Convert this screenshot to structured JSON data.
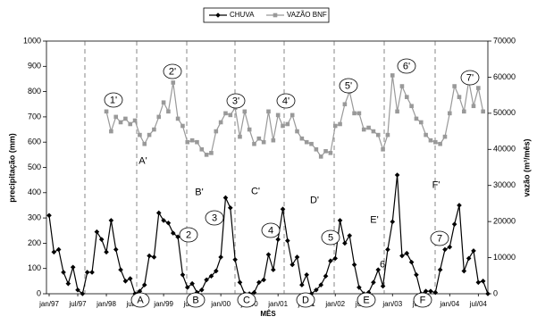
{
  "chart_data": {
    "type": "line",
    "x_label": "MÊS",
    "y_label": "precipitação (mm)",
    "y2_label": "vazão (m³/mês)",
    "categories": [
      "jan/97",
      null,
      null,
      null,
      null,
      null,
      "jul/97",
      null,
      null,
      null,
      null,
      null,
      "jan/98",
      null,
      null,
      null,
      null,
      null,
      "jul/98",
      null,
      null,
      null,
      null,
      null,
      "jan/99",
      null,
      null,
      null,
      null,
      null,
      "jul/99",
      null,
      null,
      null,
      null,
      null,
      "jan/00",
      null,
      null,
      null,
      null,
      null,
      "jul/00",
      null,
      null,
      null,
      null,
      null,
      "jan/01",
      null,
      null,
      null,
      null,
      null,
      "jul/01",
      null,
      null,
      null,
      null,
      null,
      "jan/02",
      null,
      null,
      null,
      null,
      null,
      "jul/02",
      null,
      null,
      null,
      null,
      null,
      "jan/03",
      null,
      null,
      null,
      null,
      null,
      "jul/03",
      null,
      null,
      null,
      null,
      null,
      "jan/04",
      null,
      null,
      null,
      null,
      null,
      "jul/04",
      null,
      null
    ],
    "series": [
      {
        "name": "CHUVA",
        "color": "#000000",
        "axis": "y",
        "marker": "diamond",
        "values": [
          310,
          165,
          175,
          85,
          40,
          105,
          15,
          0,
          85,
          85,
          245,
          215,
          165,
          290,
          175,
          95,
          50,
          60,
          0,
          10,
          35,
          150,
          145,
          320,
          290,
          280,
          240,
          225,
          75,
          25,
          40,
          5,
          15,
          55,
          70,
          90,
          145,
          380,
          340,
          135,
          45,
          0,
          0,
          5,
          45,
          55,
          155,
          95,
          215,
          335,
          210,
          115,
          145,
          35,
          75,
          0,
          15,
          35,
          70,
          130,
          140,
          290,
          200,
          230,
          115,
          25,
          0,
          5,
          45,
          95,
          30,
          175,
          285,
          470,
          150,
          160,
          125,
          75,
          0,
          10,
          10,
          5,
          95,
          175,
          185,
          275,
          350,
          90,
          140,
          170,
          45,
          50,
          0
        ]
      },
      {
        "name": "VAZÃO BNF",
        "color": "#999999",
        "axis": "y2",
        "marker": "square",
        "values": [
          null,
          null,
          null,
          null,
          null,
          null,
          null,
          null,
          null,
          null,
          null,
          null,
          50500,
          45000,
          49000,
          47500,
          48500,
          47000,
          48000,
          44000,
          41500,
          44000,
          45500,
          49000,
          53000,
          50500,
          58500,
          48500,
          46500,
          42000,
          42500,
          42000,
          40000,
          38500,
          39000,
          45000,
          47500,
          50000,
          49500,
          51500,
          43500,
          50500,
          45500,
          41500,
          43000,
          42000,
          50500,
          42500,
          49500,
          46500,
          47000,
          49500,
          45000,
          43000,
          42000,
          41500,
          40000,
          38000,
          39500,
          39000,
          46500,
          47000,
          52500,
          56000,
          50000,
          50000,
          45500,
          46000,
          45000,
          44000,
          40000,
          44000,
          60500,
          50500,
          57500,
          54500,
          52000,
          48500,
          47500,
          44000,
          42500,
          42000,
          41500,
          43500,
          50000,
          57500,
          54500,
          50500,
          59000,
          52000,
          57000,
          50500,
          null
        ]
      }
    ],
    "ylim": [
      0,
      1000
    ],
    "yticks": [
      0,
      100,
      200,
      300,
      400,
      500,
      600,
      700,
      800,
      900,
      1000
    ],
    "y2lim": [
      0,
      70000
    ],
    "y2ticks": [
      0,
      10000,
      20000,
      30000,
      40000,
      50000,
      60000,
      70000
    ],
    "legend": "top",
    "annotations": [
      "1'",
      "2'",
      "3'",
      "4'",
      "5'",
      "6'",
      "7'",
      "2",
      "3",
      "4",
      "5",
      "6",
      "7",
      "A",
      "B",
      "C",
      "D",
      "E",
      "F",
      "A'",
      "B'",
      "C'",
      "D'",
      "E'",
      "F'"
    ]
  }
}
